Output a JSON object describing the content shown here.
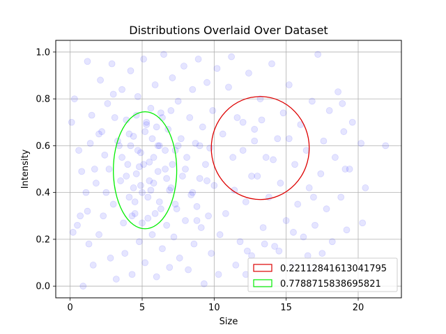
{
  "chart_data": {
    "type": "scatter",
    "title": "Distributions Overlaid Over Dataset",
    "xlabel": "Size",
    "ylabel": "Intensity",
    "xlim": [
      -1.0,
      23.0
    ],
    "ylim": [
      -0.05,
      1.05
    ],
    "x_ticks": [
      "0",
      "5",
      "10",
      "15",
      "20"
    ],
    "y_ticks": [
      "0.0",
      "0.2",
      "0.4",
      "0.6",
      "0.8",
      "1.0"
    ],
    "grid": true,
    "legend_position": "lower right",
    "point_color": "#0000ff",
    "point_alpha": 0.1,
    "points": [
      [
        1.2,
        0.96
      ],
      [
        0.3,
        0.8
      ],
      [
        0.6,
        0.58
      ],
      [
        0.2,
        0.23
      ],
      [
        0.5,
        0.26
      ],
      [
        0.8,
        0.49
      ],
      [
        0.1,
        0.7
      ],
      [
        1.5,
        0.73
      ],
      [
        1.4,
        0.61
      ],
      [
        1.2,
        0.32
      ],
      [
        0.9,
        0.0
      ],
      [
        1.3,
        0.18
      ],
      [
        1.6,
        0.09
      ],
      [
        1.8,
        0.44
      ],
      [
        2.0,
        0.22
      ],
      [
        2.1,
        0.88
      ],
      [
        2.4,
        0.56
      ],
      [
        2.6,
        0.78
      ],
      [
        2.2,
        0.66
      ],
      [
        2.9,
        0.95
      ],
      [
        3.0,
        0.35
      ],
      [
        2.8,
        0.12
      ],
      [
        3.2,
        0.03
      ],
      [
        3.3,
        0.62
      ],
      [
        3.5,
        0.45
      ],
      [
        3.6,
        0.84
      ],
      [
        3.7,
        0.27
      ],
      [
        3.8,
        0.14
      ],
      [
        3.9,
        0.71
      ],
      [
        4.0,
        0.52
      ],
      [
        4.1,
        0.38
      ],
      [
        4.2,
        0.92
      ],
      [
        4.3,
        0.05
      ],
      [
        4.4,
        0.64
      ],
      [
        4.5,
        0.31
      ],
      [
        4.6,
        0.48
      ],
      [
        4.7,
        0.81
      ],
      [
        4.8,
        0.19
      ],
      [
        4.9,
        0.57
      ],
      [
        5.0,
        0.4
      ],
      [
        5.1,
        0.97
      ],
      [
        5.2,
        0.1
      ],
      [
        5.3,
        0.69
      ],
      [
        5.4,
        0.29
      ],
      [
        5.5,
        0.53
      ],
      [
        5.6,
        0.76
      ],
      [
        5.7,
        0.22
      ],
      [
        5.8,
        0.44
      ],
      [
        5.9,
        0.86
      ],
      [
        6.0,
        0.04
      ],
      [
        6.1,
        0.6
      ],
      [
        6.2,
        0.36
      ],
      [
        6.3,
        0.74
      ],
      [
        6.4,
        0.16
      ],
      [
        6.5,
        0.99
      ],
      [
        6.6,
        0.5
      ],
      [
        6.7,
        0.26
      ],
      [
        6.8,
        0.67
      ],
      [
        6.9,
        0.08
      ],
      [
        7.0,
        0.42
      ],
      [
        7.1,
        0.89
      ],
      [
        7.2,
        0.21
      ],
      [
        7.3,
        0.58
      ],
      [
        7.4,
        0.33
      ],
      [
        7.5,
        0.79
      ],
      [
        7.6,
        0.12
      ],
      [
        7.7,
        0.63
      ],
      [
        7.8,
        0.47
      ],
      [
        7.9,
        0.94
      ],
      [
        8.0,
        0.28
      ],
      [
        8.1,
        0.55
      ],
      [
        8.2,
        0.07
      ],
      [
        8.3,
        0.72
      ],
      [
        8.4,
        0.39
      ],
      [
        8.5,
        0.84
      ],
      [
        8.6,
        0.18
      ],
      [
        8.7,
        0.61
      ],
      [
        8.8,
        0.34
      ],
      [
        8.9,
        0.97
      ],
      [
        9.0,
        0.46
      ],
      [
        9.1,
        0.25
      ],
      [
        9.2,
        0.68
      ],
      [
        9.3,
        0.01
      ],
      [
        9.4,
        0.52
      ],
      [
        9.5,
        0.87
      ],
      [
        9.6,
        0.3
      ],
      [
        9.7,
        0.59
      ],
      [
        9.8,
        0.14
      ],
      [
        9.9,
        0.75
      ],
      [
        10.0,
        0.43
      ],
      [
        10.2,
        0.93
      ],
      [
        10.4,
        0.22
      ],
      [
        10.6,
        0.65
      ],
      [
        10.8,
        0.31
      ],
      [
        11.0,
        0.85
      ],
      [
        10.3,
        0.05
      ],
      [
        11.2,
        0.98
      ],
      [
        11.4,
        0.41
      ],
      [
        11.6,
        0.72
      ],
      [
        11.8,
        0.19
      ],
      [
        12.0,
        0.58
      ],
      [
        12.2,
        0.36
      ],
      [
        12.4,
        0.91
      ],
      [
        12.6,
        0.13
      ],
      [
        12.8,
        0.67
      ],
      [
        13.0,
        0.47
      ],
      [
        13.2,
        0.8
      ],
      [
        13.4,
        0.25
      ],
      [
        13.6,
        0.55
      ],
      [
        13.8,
        0.38
      ],
      [
        14.0,
        0.95
      ],
      [
        14.2,
        0.17
      ],
      [
        14.4,
        0.63
      ],
      [
        14.6,
        0.44
      ],
      [
        14.8,
        0.74
      ],
      [
        15.0,
        0.28
      ],
      [
        15.2,
        0.86
      ],
      [
        15.4,
        0.09
      ],
      [
        15.6,
        0.52
      ],
      [
        15.8,
        0.35
      ],
      [
        16.0,
        0.69
      ],
      [
        16.2,
        0.21
      ],
      [
        16.4,
        0.58
      ],
      [
        16.6,
        0.42
      ],
      [
        16.8,
        0.79
      ],
      [
        17.0,
        0.26
      ],
      [
        17.2,
        0.99
      ],
      [
        17.4,
        0.48
      ],
      [
        17.6,
        0.62
      ],
      [
        17.8,
        0.33
      ],
      [
        18.0,
        0.75
      ],
      [
        18.2,
        0.19
      ],
      [
        18.4,
        0.55
      ],
      [
        18.6,
        0.83
      ],
      [
        18.8,
        0.38
      ],
      [
        19.0,
        0.66
      ],
      [
        19.2,
        0.24
      ],
      [
        19.4,
        0.5
      ],
      [
        19.6,
        0.7
      ],
      [
        20.2,
        0.61
      ],
      [
        20.3,
        0.27
      ],
      [
        20.5,
        0.42
      ],
      [
        21.9,
        0.6
      ],
      [
        16.5,
        0.13
      ],
      [
        15.5,
        0.23
      ],
      [
        14.5,
        0.15
      ],
      [
        13.5,
        0.18
      ],
      [
        12.3,
        0.15
      ],
      [
        11.5,
        0.09
      ],
      [
        17.5,
        0.14
      ],
      [
        12.2,
        0.05
      ],
      [
        16.6,
        0.07
      ],
      [
        19.1,
        0.5
      ],
      [
        18.9,
        0.78
      ],
      [
        12.0,
        0.7
      ],
      [
        12.8,
        0.62
      ],
      [
        13.3,
        0.71
      ],
      [
        14.1,
        0.54
      ],
      [
        12.6,
        0.47
      ],
      [
        11.3,
        0.55
      ],
      [
        15.2,
        0.63
      ],
      [
        16.9,
        0.38
      ],
      [
        4.2,
        0.6
      ],
      [
        4.6,
        0.73
      ],
      [
        5.2,
        0.66
      ],
      [
        5.8,
        0.55
      ],
      [
        6.1,
        0.49
      ],
      [
        4.9,
        0.43
      ],
      [
        5.4,
        0.38
      ],
      [
        4.3,
        0.3
      ],
      [
        6.3,
        0.33
      ],
      [
        5.0,
        0.27
      ],
      [
        5.7,
        0.63
      ],
      [
        4.8,
        0.51
      ],
      [
        6.6,
        0.58
      ],
      [
        3.9,
        0.47
      ],
      [
        6.9,
        0.41
      ],
      [
        5.3,
        0.7
      ],
      [
        4.5,
        0.36
      ],
      [
        6.0,
        0.68
      ],
      [
        3.6,
        0.55
      ],
      [
        7.1,
        0.52
      ],
      [
        5.5,
        0.45
      ],
      [
        4.1,
        0.65
      ],
      [
        6.4,
        0.72
      ],
      [
        5.9,
        0.31
      ],
      [
        4.7,
        0.58
      ],
      [
        5.1,
        0.52
      ],
      [
        5.6,
        0.41
      ],
      [
        6.2,
        0.6
      ],
      [
        4.4,
        0.42
      ],
      [
        6.7,
        0.46
      ],
      [
        3.4,
        0.6
      ],
      [
        7.3,
        0.35
      ],
      [
        2.5,
        0.4
      ],
      [
        2.7,
        0.5
      ],
      [
        3.1,
        0.72
      ],
      [
        7.5,
        0.6
      ],
      [
        2.3,
        0.3
      ],
      [
        8.0,
        0.5
      ],
      [
        1.7,
        0.5
      ],
      [
        8.5,
        0.4
      ],
      [
        1.1,
        0.4
      ],
      [
        9.0,
        0.6
      ],
      [
        0.7,
        0.3
      ],
      [
        3.0,
        0.82
      ],
      [
        7.0,
        0.75
      ],
      [
        8.8,
        0.28
      ],
      [
        2.0,
        0.65
      ],
      [
        9.5,
        0.45
      ]
    ],
    "ellipses": [
      {
        "label": "0.22112841613041795",
        "color": "#dd0000",
        "cx": 13.2,
        "cy": 0.59,
        "rx": 3.4,
        "ry": 0.22
      },
      {
        "label": "0.7788715838695821",
        "color": "#00ee00",
        "cx": 5.2,
        "cy": 0.495,
        "rx": 2.2,
        "ry": 0.25
      }
    ]
  }
}
